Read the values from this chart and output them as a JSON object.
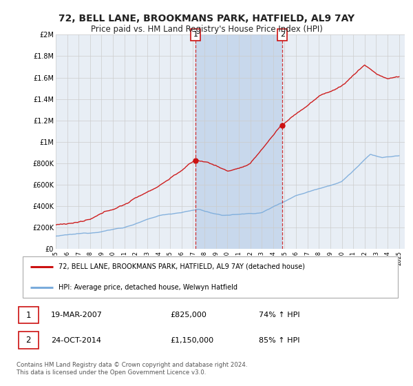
{
  "title_line1": "72, BELL LANE, BROOKMANS PARK, HATFIELD, AL9 7AY",
  "title_line2": "Price paid vs. HM Land Registry's House Price Index (HPI)",
  "ylim": [
    0,
    2000000
  ],
  "yticks": [
    0,
    200000,
    400000,
    600000,
    800000,
    1000000,
    1200000,
    1400000,
    1600000,
    1800000,
    2000000
  ],
  "ytick_labels": [
    "£0",
    "£200K",
    "£400K",
    "£600K",
    "£800K",
    "£1M",
    "£1.2M",
    "£1.4M",
    "£1.6M",
    "£1.8M",
    "£2M"
  ],
  "hpi_color": "#7aabdb",
  "property_color": "#cc1111",
  "event1_x": 2007.22,
  "event1_y": 825000,
  "event1_label": "19-MAR-2007",
  "event1_price": "£825,000",
  "event1_hpi": "74% ↑ HPI",
  "event2_x": 2014.81,
  "event2_y": 1150000,
  "event2_label": "24-OCT-2014",
  "event2_price": "£1,150,000",
  "event2_hpi": "85% ↑ HPI",
  "legend_property": "72, BELL LANE, BROOKMANS PARK, HATFIELD, AL9 7AY (detached house)",
  "legend_hpi": "HPI: Average price, detached house, Welwyn Hatfield",
  "footer": "Contains HM Land Registry data © Crown copyright and database right 2024.\nThis data is licensed under the Open Government Licence v3.0.",
  "background_color": "#ffffff",
  "plot_bg_color": "#e8eef5",
  "shade_color": "#c8d8ec",
  "grid_color": "#cccccc",
  "xmin": 1995,
  "xmax": 2025.5
}
